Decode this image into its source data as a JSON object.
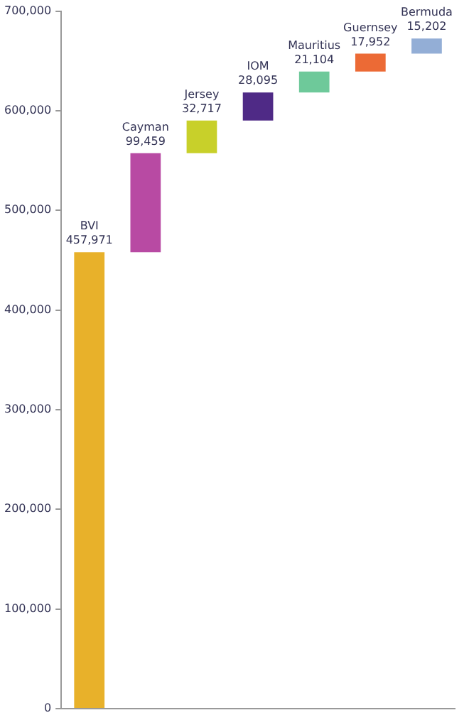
{
  "chart_data": {
    "type": "bar",
    "categories": [
      "BVI",
      "Cayman",
      "Jersey",
      "IOM",
      "Mauritius",
      "Guernsey",
      "Bermuda"
    ],
    "values": [
      457971,
      99459,
      32717,
      28095,
      21104,
      17952,
      15202
    ],
    "base": [
      0,
      457971,
      557430,
      590147,
      618242,
      639346,
      657298
    ],
    "colors": [
      "#e8b12a",
      "#b84aa3",
      "#c8d02a",
      "#4f2a86",
      "#6ec99a",
      "#ec6a35",
      "#93aed6"
    ],
    "value_labels": [
      "457,971",
      "99,459",
      "32,717",
      "28,095",
      "21,104",
      "17,952",
      "15,202"
    ],
    "ylim": [
      0,
      700000
    ],
    "yticks": [
      {
        "value": 0,
        "label": "0"
      },
      {
        "value": 100000,
        "label": "100,000"
      },
      {
        "value": 200000,
        "label": "200,000"
      },
      {
        "value": 300000,
        "label": "300,000"
      },
      {
        "value": 400000,
        "label": "400,000"
      },
      {
        "value": 500000,
        "label": "500,000"
      },
      {
        "value": 600000,
        "label": "600,000"
      },
      {
        "value": 700000,
        "label": "700,000"
      }
    ],
    "grid": false,
    "legend": false,
    "tick_labels": "y"
  }
}
